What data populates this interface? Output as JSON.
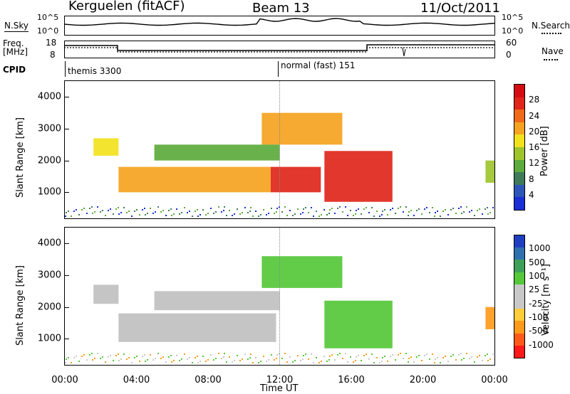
{
  "header": {
    "station": "Kerguelen (fitACF)",
    "beam": "Beam 13",
    "date": "11/Oct/2011"
  },
  "params": {
    "nsky_label": "N.Sky",
    "nsearch_label": "N.Search",
    "left_top_scale": "10^5",
    "left_bottom_scale": "10^0",
    "right_top_scale": "10^5",
    "right_bottom_scale": "10^0",
    "freq_label_line1": "Freq.",
    "freq_label_line2": "[MHz]",
    "freq_top": "18",
    "freq_bottom": "8",
    "nave_label": "Nave",
    "nave_top": "60",
    "nave_bottom": "0",
    "cpid_label": "CPID",
    "cpid_mode1": "themis 3300",
    "cpid_mode2": "normal (fast) 151"
  },
  "colors": {
    "power": [
      "#1a2fd6",
      "#2e55b8",
      "#3f7a5a",
      "#5cab3c",
      "#9ec42c",
      "#f2e21e",
      "#f5a320",
      "#f06a1a",
      "#e0261a",
      "#d40d12"
    ],
    "velocity": [
      "#ff1a1a",
      "#ff5a1a",
      "#ff9a1a",
      "#ffcc3a",
      "#c8c8c8",
      "#c8c8c8",
      "#55c83a",
      "#3fa05a",
      "#3070b0",
      "#1f3fc0"
    ],
    "ground_scatter": "#c0c0c0"
  },
  "chart_data": [
    {
      "type": "heatmap",
      "name_hint": "power",
      "ylabel": "Slant Range [km]",
      "y_ticks": [
        1000,
        2000,
        3000,
        4000
      ],
      "ylim": [
        180,
        4500
      ],
      "colorbar_title": "Power [dB]",
      "colorbar_ticks": [
        4,
        8,
        12,
        16,
        20,
        24,
        28
      ],
      "colorbar_range": [
        0,
        32
      ],
      "regions": [
        {
          "t_start": 1.6,
          "t_end": 3.0,
          "r_low": 2150,
          "r_high": 2700,
          "value": 16
        },
        {
          "t_start": 3.0,
          "t_end": 11.5,
          "r_low": 1000,
          "r_high": 1800,
          "value": 22
        },
        {
          "t_start": 11.5,
          "t_end": 14.3,
          "r_low": 1000,
          "r_high": 1800,
          "value": 26
        },
        {
          "t_start": 11.0,
          "t_end": 15.5,
          "r_low": 2500,
          "r_high": 3500,
          "value": 22
        },
        {
          "t_start": 14.5,
          "t_end": 18.3,
          "r_low": 700,
          "r_high": 2300,
          "value": 26
        },
        {
          "t_start": 5.0,
          "t_end": 12.0,
          "r_low": 2000,
          "r_high": 2500,
          "value": 10
        },
        {
          "t_start": 23.5,
          "t_end": 24.0,
          "r_low": 1300,
          "r_high": 2000,
          "value": 14
        }
      ]
    },
    {
      "type": "heatmap",
      "name_hint": "velocity",
      "ylabel": "Slant Range [km]",
      "y_ticks": [
        1000,
        2000,
        3000,
        4000
      ],
      "ylim": [
        180,
        4500
      ],
      "colorbar_title": "Velocity [m s⁻¹]",
      "colorbar_ticks": [
        1000,
        500,
        100,
        25,
        -25,
        -100,
        -500,
        -1000
      ],
      "regions": [
        {
          "t_start": 1.6,
          "t_end": 3.0,
          "r_low": 2100,
          "r_high": 2700,
          "value": 0
        },
        {
          "t_start": 3.0,
          "t_end": 11.8,
          "r_low": 900,
          "r_high": 1800,
          "value": 0
        },
        {
          "t_start": 5.0,
          "t_end": 12.0,
          "r_low": 1900,
          "r_high": 2500,
          "value": 0
        },
        {
          "t_start": 11.0,
          "t_end": 15.5,
          "r_low": 2600,
          "r_high": 3600,
          "value": 100
        },
        {
          "t_start": 14.5,
          "t_end": 18.3,
          "r_low": 700,
          "r_high": 2200,
          "value": 150
        },
        {
          "t_start": 23.5,
          "t_end": 24.0,
          "r_low": 1300,
          "r_high": 2000,
          "value": -300
        }
      ]
    }
  ],
  "x_axis": {
    "label": "Time UT",
    "ticks": [
      "00:00",
      "04:00",
      "08:00",
      "12:00",
      "16:00",
      "20:00",
      "00:00"
    ]
  }
}
